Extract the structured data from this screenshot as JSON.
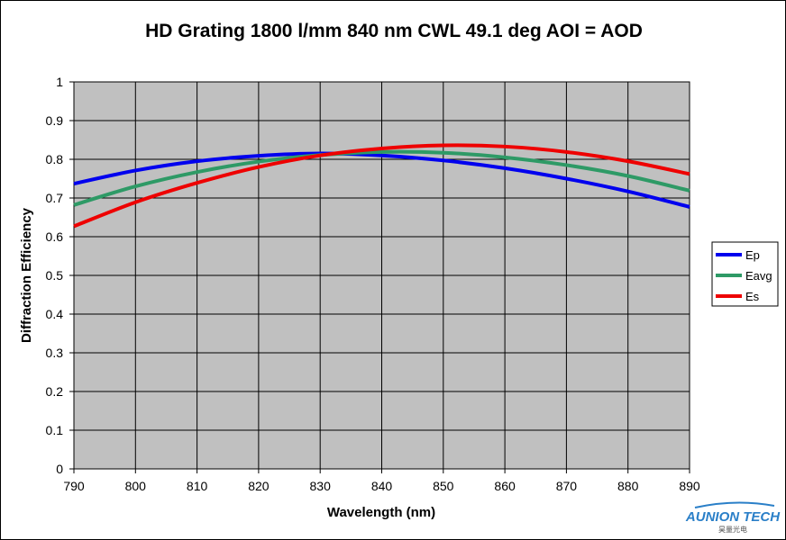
{
  "chart_data": {
    "type": "line",
    "title": "HD Grating 1800 l/mm  840 nm CWL 49.1 deg AOI = AOD",
    "xlabel": "Wavelength (nm)",
    "ylabel": "Diffraction Efficiency",
    "xlim": [
      790,
      890
    ],
    "ylim": [
      0,
      1
    ],
    "x_ticks": [
      790,
      800,
      810,
      820,
      830,
      840,
      850,
      860,
      870,
      880,
      890
    ],
    "y_ticks": [
      0,
      0.1,
      0.2,
      0.3,
      0.4,
      0.5,
      0.6,
      0.7,
      0.8,
      0.9,
      1
    ],
    "grid": true,
    "legend": "right",
    "x": [
      790,
      800,
      810,
      820,
      830,
      840,
      850,
      860,
      870,
      880,
      890
    ],
    "series": [
      {
        "name": "Ep",
        "color": "#0000ee",
        "values": [
          0.737,
          0.771,
          0.795,
          0.809,
          0.815,
          0.81,
          0.797,
          0.777,
          0.75,
          0.717,
          0.677
        ]
      },
      {
        "name": "Eavg",
        "color": "#2e9a66",
        "values": [
          0.682,
          0.73,
          0.767,
          0.794,
          0.811,
          0.819,
          0.817,
          0.805,
          0.785,
          0.757,
          0.719
        ]
      },
      {
        "name": "Es",
        "color": "#ee0000",
        "values": [
          0.627,
          0.689,
          0.739,
          0.78,
          0.81,
          0.828,
          0.836,
          0.833,
          0.819,
          0.795,
          0.762
        ]
      }
    ]
  },
  "watermark": {
    "brand": "AUNION TECH",
    "sub": "昊量光电"
  }
}
